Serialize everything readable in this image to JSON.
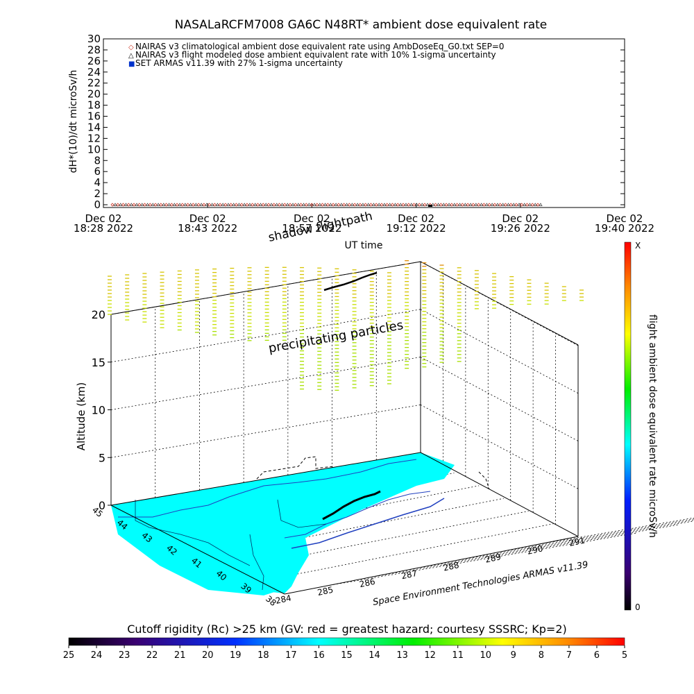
{
  "title": "NASALaRCFM7008  GA6C N48RT* ambient dose equivalent rate",
  "colors": {
    "axis": "#000000",
    "land": "#00ffff",
    "coast": "#1f3fbf",
    "nairas_clim": "#cc3322",
    "nairas_flight": "#333333",
    "armas": "#0033cc",
    "flightpath": "#000000"
  },
  "chart_data": [
    {
      "type": "scatter",
      "title": "NASALaRCFM7008  GA6C N48RT* ambient dose equivalent rate",
      "xlabel": "UT time",
      "ylabel": "dH*(10)/dt microSv/h",
      "ylim": [
        0,
        30
      ],
      "yticks": [
        "0",
        "2",
        "4",
        "6",
        "8",
        "10",
        "12",
        "14",
        "16",
        "18",
        "20",
        "22",
        "24",
        "26",
        "28",
        "30"
      ],
      "xticks": [
        {
          "line1": "Dec 02",
          "line2": "18:28 2022"
        },
        {
          "line1": "Dec 02",
          "line2": "18:43 2022"
        },
        {
          "line1": "Dec 02",
          "line2": "18:57 2022"
        },
        {
          "line1": "Dec 02",
          "line2": "19:12 2022"
        },
        {
          "line1": "Dec 02",
          "line2": "19:26 2022"
        },
        {
          "line1": "Dec 02",
          "line2": "19:40 2022"
        }
      ],
      "legend": [
        {
          "symbol": "◇",
          "text": "NAIRAS v3 climatological ambient dose equivalent rate using AmbDoseEq_G0.txt SEP=0"
        },
        {
          "symbol": "△",
          "text": "NAIRAS v3 flight modeled dose ambient equivalent rate with 10% 1-sigma uncertainty"
        },
        {
          "symbol": "■",
          "text": "SET ARMAS v11.39 with 27% 1-sigma uncertainty"
        }
      ],
      "series_note": "all flight points lie near 0 microSv/h",
      "series": [
        {
          "marker": "diamond",
          "values": [
            0,
            0,
            0,
            0,
            0,
            0,
            0,
            0,
            0,
            0,
            0,
            0,
            0,
            0,
            0,
            0,
            0,
            0,
            0,
            0,
            0,
            0,
            0,
            0,
            0,
            0,
            0,
            0,
            0,
            0,
            0,
            0,
            0,
            0,
            0,
            0,
            0,
            0,
            0,
            0,
            0,
            0,
            0,
            0,
            0,
            0,
            0,
            0,
            0,
            0,
            0,
            0,
            0,
            0,
            0,
            0,
            0,
            0,
            0,
            0,
            0,
            0,
            0,
            0,
            0,
            0,
            0,
            0,
            0,
            0,
            0,
            0,
            0,
            0,
            0,
            0,
            0,
            0,
            0,
            0
          ]
        },
        {
          "marker": "triangle",
          "values": [
            0,
            0,
            0,
            0,
            0,
            0,
            0,
            0,
            0,
            0,
            0,
            0,
            0,
            0,
            0,
            0,
            0,
            0,
            0,
            0,
            0,
            0,
            0,
            0,
            0,
            0,
            0,
            0,
            0,
            0,
            0,
            0,
            0,
            0,
            0,
            0,
            0,
            0,
            0,
            0,
            0,
            0,
            0,
            0,
            0,
            0,
            0,
            0,
            0,
            0,
            0,
            0,
            0,
            0,
            0,
            0,
            0,
            0,
            0,
            0,
            0,
            0,
            0,
            0,
            0,
            0,
            0,
            0,
            0,
            0,
            0,
            0,
            0,
            0,
            0,
            0,
            0,
            0,
            0,
            0
          ]
        }
      ]
    },
    {
      "type": "scatter",
      "zlabel": "Altitude (km)",
      "zticks": [
        "0",
        "5",
        "10",
        "15",
        "20"
      ],
      "lon_ticks": [
        "284",
        "285",
        "286",
        "287",
        "288",
        "289",
        "290",
        "291"
      ],
      "lat_ticks": [
        "38",
        "39",
        "40",
        "41",
        "42",
        "43",
        "44",
        "45"
      ],
      "annotations": [
        "shadow flightpath",
        "precipitating particles"
      ],
      "credit": "Space Environment Technologies ARMAS v11.39",
      "right_colorbar": {
        "label": "flight ambient dose equivalent rate microSv/h",
        "top": "X",
        "bottom": "0"
      },
      "bottom_colorbar": {
        "label": "Cutoff rigidity (Rc) >25 km (GV: red = greatest hazard; courtesy SSSRC; Kp=2)",
        "ticks": [
          "25",
          "24",
          "23",
          "22",
          "21",
          "20",
          "19",
          "18",
          "17",
          "16",
          "15",
          "14",
          "13",
          "12",
          "11",
          "10",
          "9",
          "8",
          "7",
          "6",
          "5"
        ]
      }
    }
  ]
}
